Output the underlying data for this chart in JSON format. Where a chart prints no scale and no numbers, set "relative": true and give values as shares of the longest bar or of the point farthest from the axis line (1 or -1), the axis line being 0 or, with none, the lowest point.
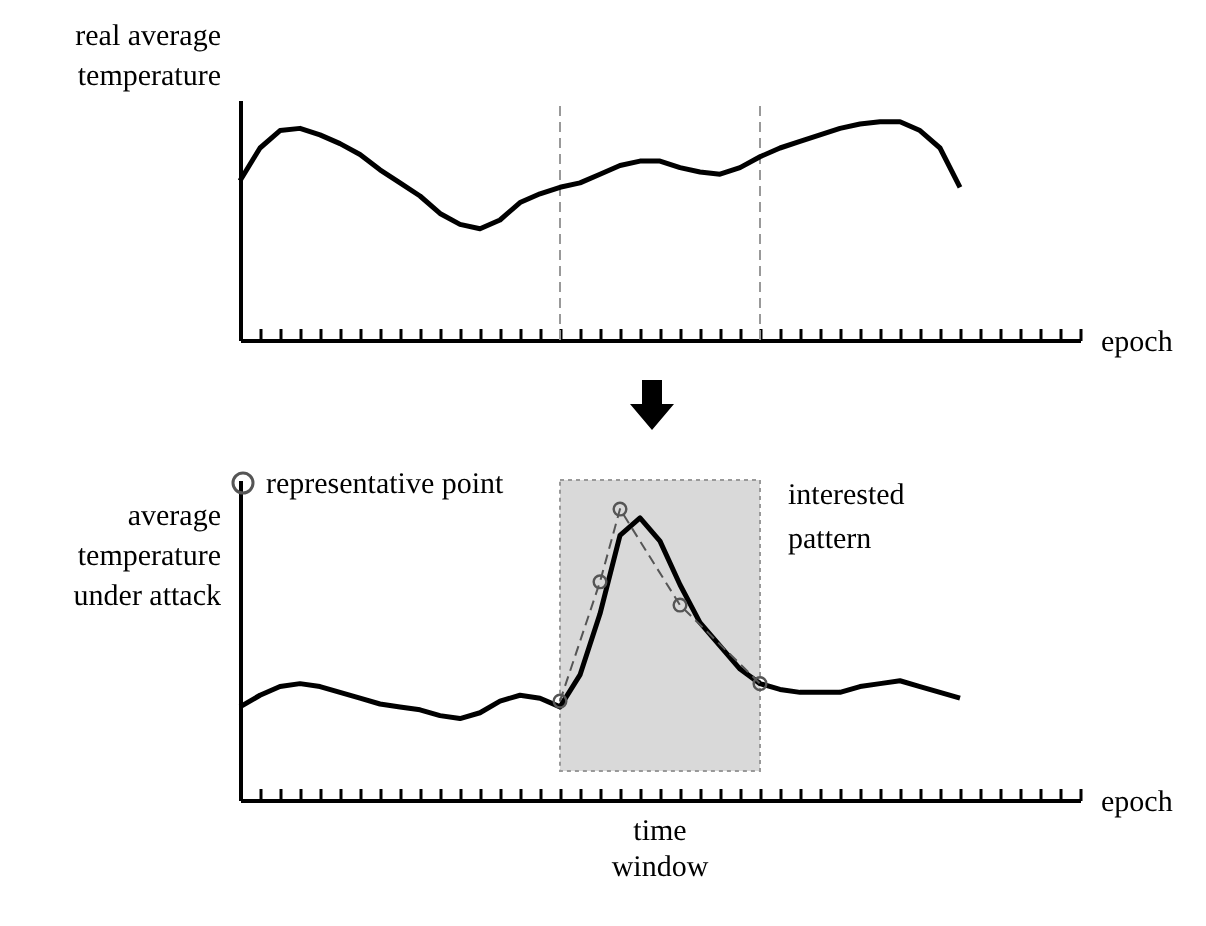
{
  "chart_data": [
    {
      "type": "line",
      "ylabel": "real average\ntemperature",
      "xlabel": "epoch",
      "relative": true,
      "categories": [
        null,
        null,
        null,
        null,
        null,
        null,
        null,
        null,
        null,
        null,
        null,
        null,
        null,
        null,
        null,
        null,
        null,
        null,
        null,
        null,
        null,
        null,
        null,
        null,
        null,
        null,
        null,
        null,
        null,
        null,
        null,
        null,
        null,
        null,
        null,
        null,
        null,
        null,
        null,
        null,
        null,
        null,
        null
      ],
      "series": [
        {
          "color": "#000000",
          "values": [
            0.73,
            0.88,
            0.96,
            0.97,
            0.94,
            0.9,
            0.85,
            0.78,
            0.72,
            0.66,
            0.58,
            0.53,
            0.51,
            0.55,
            0.63,
            0.67,
            0.7,
            0.72,
            0.76,
            0.8,
            0.82,
            0.82,
            0.79,
            0.77,
            0.76,
            0.79,
            0.84,
            0.88,
            0.91,
            0.94,
            0.97,
            0.99,
            1,
            1,
            0.96,
            0.88,
            0.7,
            null,
            null,
            null,
            null,
            null,
            null
          ]
        }
      ]
    },
    {
      "type": "line",
      "ylabel": "average\ntemperature\nunder attack",
      "xlabel": "epoch",
      "relative": true,
      "legend": "top left",
      "marker": "circle",
      "categories": [
        null,
        null,
        null,
        null,
        null,
        null,
        null,
        null,
        null,
        null,
        null,
        null,
        null,
        null,
        null,
        null,
        null,
        null,
        null,
        null,
        null,
        null,
        null,
        null,
        null,
        null,
        null,
        null,
        null,
        null,
        null,
        null,
        null,
        null,
        null,
        null,
        null,
        null,
        null,
        null,
        null,
        null,
        null
      ],
      "series": [
        {
          "color": "#000000",
          "marker": "none",
          "values": [
            0.32,
            0.36,
            0.39,
            0.4,
            0.39,
            0.37,
            0.35,
            0.33,
            0.32,
            0.31,
            0.29,
            0.28,
            0.3,
            0.34,
            0.36,
            0.35,
            0.32,
            0.43,
            0.64,
            0.91,
            0.97,
            0.89,
            0.74,
            0.61,
            0.53,
            0.45,
            0.4,
            0.38,
            0.37,
            0.37,
            0.37,
            0.39,
            0.4,
            0.41,
            0.39,
            0.37,
            0.35,
            null,
            null,
            null,
            null,
            null,
            null
          ]
        },
        {
          "name": "representative point",
          "color": "#555555",
          "line_style": "dashed",
          "values": [
            null,
            null,
            null,
            null,
            null,
            null,
            null,
            null,
            null,
            null,
            null,
            null,
            null,
            null,
            null,
            null,
            0.34,
            null,
            0.75,
            1,
            null,
            null,
            0.67,
            null,
            null,
            null,
            0.4,
            null,
            null,
            null,
            null,
            null,
            null,
            null,
            null,
            null,
            null,
            null,
            null,
            null,
            null,
            null,
            null
          ]
        }
      ],
      "annotations": [
        "interested\npattern",
        "time\nwindow"
      ]
    }
  ]
}
